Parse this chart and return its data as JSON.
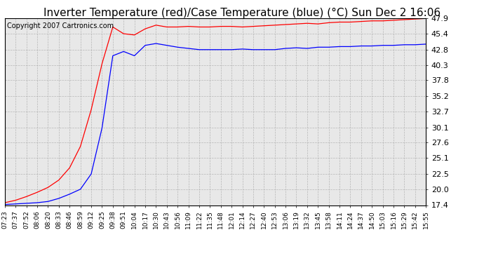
{
  "title": "Inverter Temperature (red)/Case Temperature (blue) (°C) Sun Dec 2 16:06",
  "copyright": "Copyright 2007 Cartronics.com",
  "yticks": [
    17.4,
    20.0,
    22.5,
    25.1,
    27.6,
    30.1,
    32.7,
    35.2,
    37.8,
    40.3,
    42.8,
    45.4,
    47.9
  ],
  "ylim": [
    17.4,
    47.9
  ],
  "xtick_labels": [
    "07:23",
    "07:37",
    "07:52",
    "08:06",
    "08:20",
    "08:33",
    "08:46",
    "08:59",
    "09:12",
    "09:25",
    "09:38",
    "09:51",
    "10:04",
    "10:17",
    "10:30",
    "10:43",
    "10:56",
    "11:09",
    "11:22",
    "11:35",
    "11:48",
    "12:01",
    "12:14",
    "12:27",
    "12:40",
    "12:53",
    "13:06",
    "13:19",
    "13:32",
    "13:45",
    "13:58",
    "14:11",
    "14:24",
    "14:37",
    "14:50",
    "15:03",
    "15:16",
    "15:29",
    "15:42",
    "15:55"
  ],
  "red_data": [
    17.8,
    18.2,
    18.8,
    19.5,
    20.3,
    21.5,
    23.5,
    27.0,
    33.0,
    40.5,
    46.5,
    45.4,
    45.2,
    46.2,
    46.8,
    46.5,
    46.5,
    46.6,
    46.5,
    46.5,
    46.6,
    46.6,
    46.5,
    46.6,
    46.7,
    46.8,
    46.9,
    47.0,
    47.1,
    47.0,
    47.2,
    47.3,
    47.3,
    47.4,
    47.5,
    47.5,
    47.6,
    47.7,
    47.8,
    47.9
  ],
  "blue_data": [
    17.5,
    17.6,
    17.7,
    17.8,
    18.0,
    18.5,
    19.2,
    20.0,
    22.5,
    30.0,
    41.8,
    42.5,
    41.8,
    43.5,
    43.8,
    43.5,
    43.2,
    43.0,
    42.8,
    42.8,
    42.8,
    42.8,
    42.9,
    42.8,
    42.8,
    42.8,
    43.0,
    43.1,
    43.0,
    43.2,
    43.2,
    43.3,
    43.3,
    43.4,
    43.4,
    43.5,
    43.5,
    43.6,
    43.6,
    43.7
  ],
  "red_color": "#FF0000",
  "blue_color": "#0000FF",
  "bg_color": "#FFFFFF",
  "plot_bg_color": "#E8E8E8",
  "grid_color": "#AAAAAA",
  "title_fontsize": 11,
  "copyright_fontsize": 7,
  "tick_fontsize": 8,
  "xtick_fontsize": 6.5
}
